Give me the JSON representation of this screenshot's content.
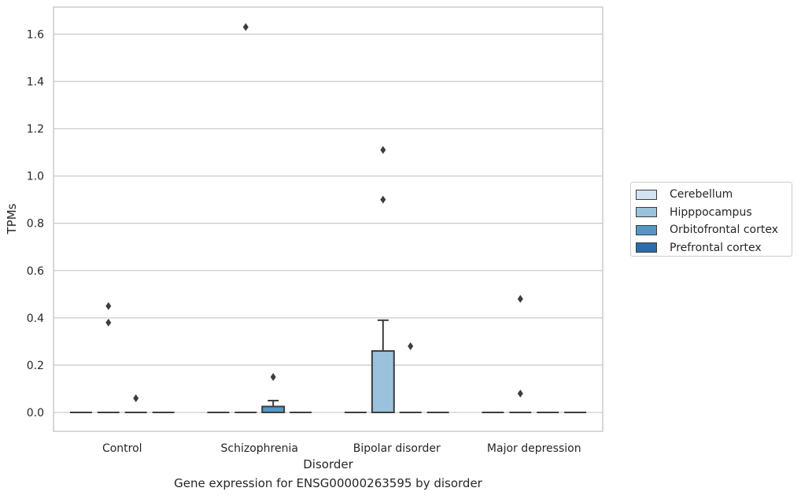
{
  "chart_data": {
    "type": "box",
    "xlabel": "Disorder",
    "ylabel": "TPMs",
    "caption": "Gene expression for ENSG00000263595 by disorder",
    "categories": [
      "Control",
      "Schizophrenia",
      "Bipolar disorder",
      "Major depression"
    ],
    "ylim": [
      -0.08,
      1.72
    ],
    "yticks": [
      "0.0",
      "0.2",
      "0.4",
      "0.6",
      "0.8",
      "1.0",
      "1.2",
      "1.4",
      "1.6"
    ],
    "grid": true,
    "legend_position": "right",
    "series": [
      {
        "name": "Cerebellum",
        "color": "#d4e3f1",
        "boxes": [
          {
            "q1": 0,
            "median": 0,
            "q3": 0,
            "whislo": 0,
            "whishi": 0,
            "fliers": []
          },
          {
            "q1": 0,
            "median": 0,
            "q3": 0,
            "whislo": 0,
            "whishi": 0,
            "fliers": []
          },
          {
            "q1": 0,
            "median": 0,
            "q3": 0,
            "whislo": 0,
            "whishi": 0,
            "fliers": []
          },
          {
            "q1": 0,
            "median": 0,
            "q3": 0,
            "whislo": 0,
            "whishi": 0,
            "fliers": []
          }
        ]
      },
      {
        "name": "Hipppocampus",
        "color": "#9ac2dc",
        "boxes": [
          {
            "q1": 0,
            "median": 0,
            "q3": 0,
            "whislo": 0,
            "whishi": 0,
            "fliers": [
              0.45,
              0.38
            ]
          },
          {
            "q1": 0,
            "median": 0,
            "q3": 0,
            "whislo": 0,
            "whishi": 0,
            "fliers": [
              1.63
            ]
          },
          {
            "q1": 0,
            "median": 0,
            "q3": 0.26,
            "whislo": 0,
            "whishi": 0.39,
            "fliers": [
              1.11,
              0.9
            ]
          },
          {
            "q1": 0,
            "median": 0,
            "q3": 0,
            "whislo": 0,
            "whishi": 0,
            "fliers": [
              0.48,
              0.08
            ]
          }
        ]
      },
      {
        "name": "Orbitofrontal cortex",
        "color": "#5398c5",
        "boxes": [
          {
            "q1": 0,
            "median": 0,
            "q3": 0,
            "whislo": 0,
            "whishi": 0,
            "fliers": [
              0.06
            ]
          },
          {
            "q1": 0,
            "median": 0,
            "q3": 0.025,
            "whislo": 0,
            "whishi": 0.05,
            "fliers": [
              0.15
            ]
          },
          {
            "q1": 0,
            "median": 0,
            "q3": 0,
            "whislo": 0,
            "whishi": 0,
            "fliers": [
              0.28
            ]
          },
          {
            "q1": 0,
            "median": 0,
            "q3": 0,
            "whislo": 0,
            "whishi": 0,
            "fliers": []
          }
        ]
      },
      {
        "name": "Prefrontal cortex",
        "color": "#2a6ca8",
        "boxes": [
          {
            "q1": 0,
            "median": 0,
            "q3": 0,
            "whislo": 0,
            "whishi": 0,
            "fliers": []
          },
          {
            "q1": 0,
            "median": 0,
            "q3": 0,
            "whislo": 0,
            "whishi": 0,
            "fliers": []
          },
          {
            "q1": 0,
            "median": 0,
            "q3": 0,
            "whislo": 0,
            "whishi": 0,
            "fliers": []
          },
          {
            "q1": 0,
            "median": 0,
            "q3": 0,
            "whislo": 0,
            "whishi": 0,
            "fliers": []
          }
        ]
      }
    ]
  }
}
